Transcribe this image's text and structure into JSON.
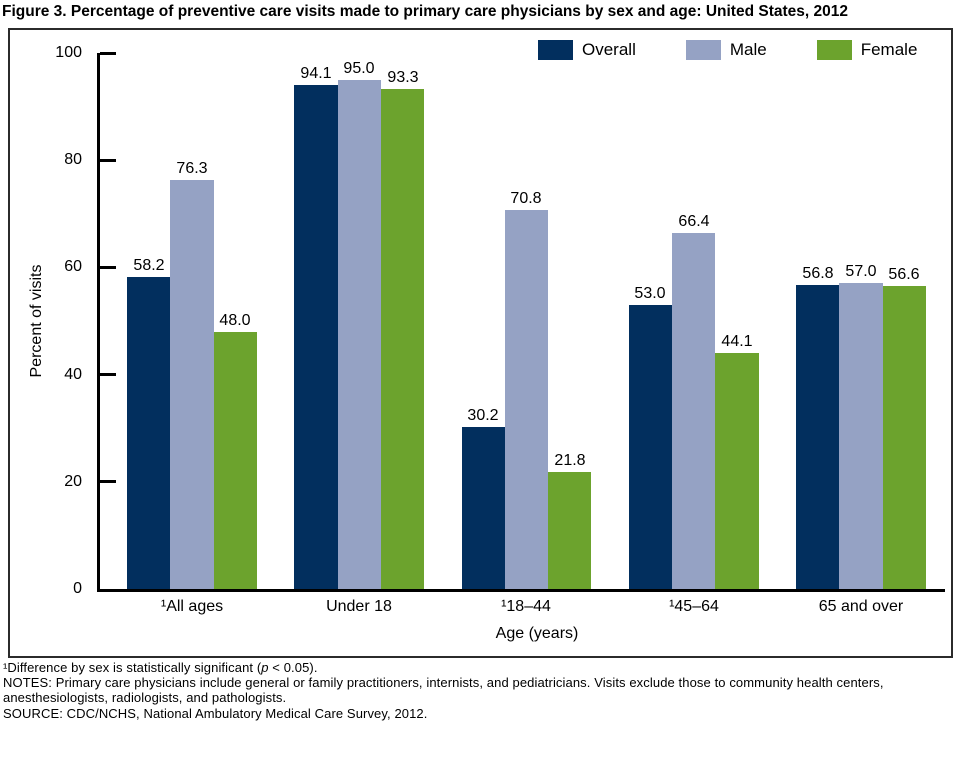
{
  "title": "Figure 3. Percentage of preventive care visits made to primary care physicians by sex and age: United States, 2012",
  "chart_data": {
    "type": "bar",
    "categories": [
      "¹All ages",
      "Under 18",
      "¹18–44",
      "¹45–64",
      "65 and over"
    ],
    "series": [
      {
        "name": "Overall",
        "color": "#022f5e",
        "values": [
          58.2,
          94.1,
          30.2,
          53.0,
          56.8
        ]
      },
      {
        "name": "Male",
        "color": "#95a2c4",
        "values": [
          76.3,
          95.0,
          70.8,
          66.4,
          57.0
        ]
      },
      {
        "name": "Female",
        "color": "#6ca32d",
        "values": [
          48.0,
          93.3,
          21.8,
          44.1,
          56.6
        ]
      }
    ],
    "xlabel": "Age (years)",
    "ylabel": "Percent of visits",
    "ylim": [
      0,
      100
    ],
    "yticks": [
      0,
      20,
      40,
      60,
      80,
      100
    ],
    "grid": false,
    "legend_position": "top-right",
    "value_label_decimals": 1
  },
  "footnotes": {
    "sig_prefix": "¹Difference by sex is statistically significant (",
    "sig_italic": "p",
    "sig_suffix": " < 0.05).",
    "notes": "NOTES: Primary care physicians include general or family practitioners, internists, and pediatricians. Visits exclude those to community health centers, anesthesiologists, radiologists, and pathologists.",
    "source": "SOURCE: CDC/NCHS, National Ambulatory Medical Care Survey, 2012."
  }
}
